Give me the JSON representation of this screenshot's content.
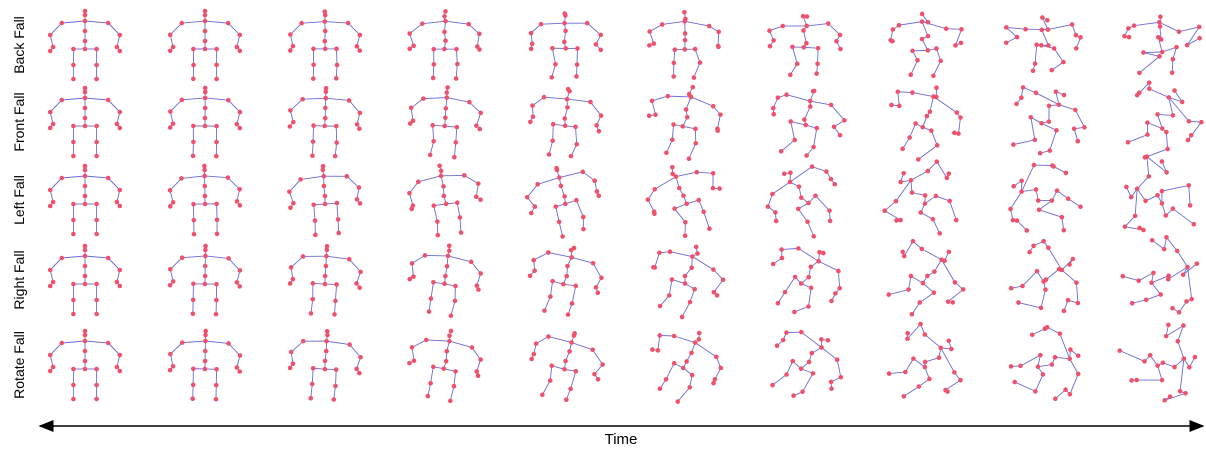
{
  "rows": [
    "Back Fall",
    "Front Fall",
    "Left Fall",
    "Right Fall",
    "Rotate Fall"
  ],
  "time_label": "Time"
}
